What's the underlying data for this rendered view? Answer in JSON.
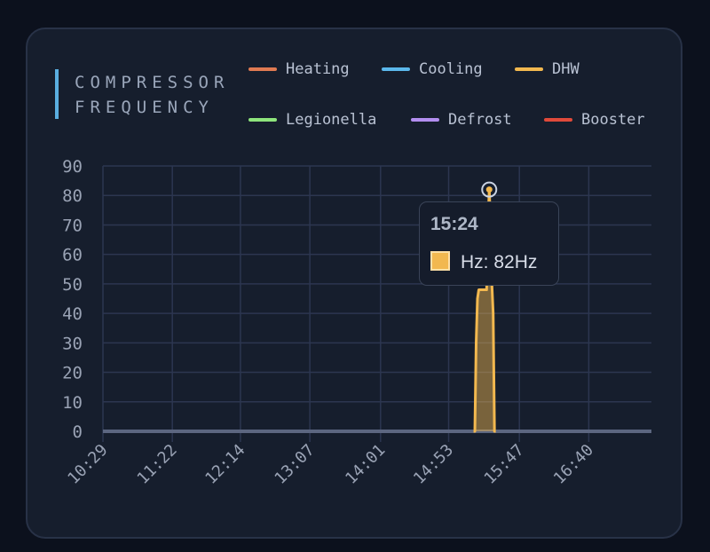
{
  "title_lines": [
    "COMPRESSOR",
    "FREQUENCY"
  ],
  "legend": [
    {
      "label": "Heating",
      "color": "#e07a52"
    },
    {
      "label": "Cooling",
      "color": "#5bb8ec"
    },
    {
      "label": "DHW",
      "color": "#f2b84f"
    },
    {
      "label": "Legionella",
      "color": "#8ee57c"
    },
    {
      "label": "Defrost",
      "color": "#b38ef0"
    },
    {
      "label": "Booster",
      "color": "#e04a3a"
    }
  ],
  "tooltip": {
    "time": "15:24",
    "value": "Hz: 82Hz",
    "color": "#f2b84f"
  },
  "chart_data": {
    "type": "area",
    "title": "COMPRESSOR FREQUENCY",
    "xlabel": "",
    "ylabel": "",
    "x_ticks": [
      "10:29",
      "11:22",
      "12:14",
      "13:07",
      "14:01",
      "14:53",
      "15:47",
      "16:40"
    ],
    "y_ticks": [
      0,
      10,
      20,
      30,
      40,
      50,
      60,
      70,
      80,
      90
    ],
    "ylim": [
      0,
      90
    ],
    "grid": true,
    "legend_position": "top",
    "baseline": {
      "value": 0,
      "color": "#5c6680"
    },
    "series": [
      {
        "name": "DHW",
        "color": "#f2b84f",
        "points": [
          {
            "x": "15:12",
            "y": 0
          },
          {
            "x": "15:13",
            "y": 0
          },
          {
            "x": "15:14",
            "y": 30
          },
          {
            "x": "15:15",
            "y": 45
          },
          {
            "x": "15:16",
            "y": 48
          },
          {
            "x": "15:22",
            "y": 48
          },
          {
            "x": "15:23",
            "y": 70
          },
          {
            "x": "15:24",
            "y": 82
          },
          {
            "x": "15:25",
            "y": 70
          },
          {
            "x": "15:26",
            "y": 50
          },
          {
            "x": "15:27",
            "y": 40
          },
          {
            "x": "15:28",
            "y": 0
          },
          {
            "x": "15:29",
            "y": 0
          }
        ]
      }
    ],
    "highlight": {
      "x": "15:24",
      "y": 82
    }
  }
}
